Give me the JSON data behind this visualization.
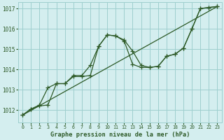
{
  "title": "Graphe pression niveau de la mer (hPa)",
  "bg_color": "#d4eeef",
  "grid_color": "#9ecfcf",
  "line_color": "#2d5a27",
  "xlim": [
    -0.5,
    23.5
  ],
  "ylim": [
    1011.4,
    1017.3
  ],
  "yticks": [
    1012,
    1013,
    1014,
    1015,
    1016,
    1017
  ],
  "xticks": [
    0,
    1,
    2,
    3,
    4,
    5,
    6,
    7,
    8,
    9,
    10,
    11,
    12,
    13,
    14,
    15,
    16,
    17,
    18,
    19,
    20,
    21,
    22,
    23
  ],
  "series1_x": [
    0,
    1,
    2,
    3,
    4,
    5,
    6,
    7,
    8,
    9,
    10,
    11,
    12,
    13,
    14,
    15,
    16,
    17,
    18,
    19,
    20,
    21,
    22,
    23
  ],
  "series1_y": [
    1011.75,
    1012.05,
    1012.25,
    1013.1,
    1013.3,
    1013.3,
    1013.7,
    1013.7,
    1014.2,
    1015.15,
    1015.7,
    1015.65,
    1015.45,
    1014.9,
    1014.2,
    1014.1,
    1014.15,
    1014.65,
    1014.75,
    1015.05,
    1016.0,
    1017.0,
    1017.05,
    1017.1
  ],
  "series2_x": [
    0,
    1,
    2,
    3,
    4,
    5,
    6,
    7,
    8,
    9,
    10,
    11,
    12,
    13,
    14,
    15,
    16,
    17,
    18,
    19,
    20,
    21,
    22,
    23
  ],
  "series2_y": [
    1011.75,
    1012.05,
    1012.2,
    1012.25,
    1013.3,
    1013.3,
    1013.65,
    1013.65,
    1013.7,
    1015.15,
    1015.7,
    1015.65,
    1015.4,
    1014.25,
    1014.1,
    1014.1,
    1014.15,
    1014.65,
    1014.75,
    1015.05,
    1016.0,
    1017.0,
    1017.05,
    1017.1
  ],
  "series3_x": [
    0,
    23
  ],
  "series3_y": [
    1011.75,
    1017.1
  ]
}
